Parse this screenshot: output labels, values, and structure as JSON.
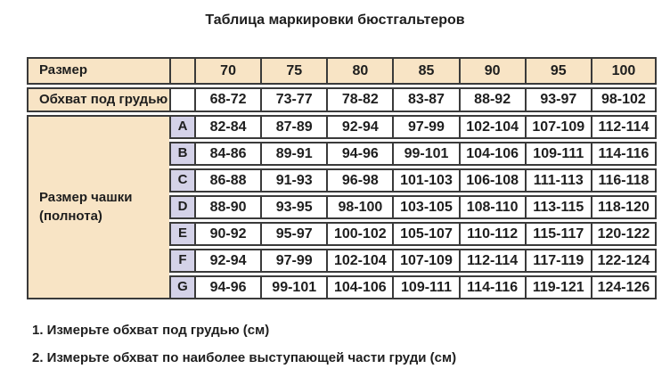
{
  "page": {
    "title": "Таблица маркировки бюстгальтеров"
  },
  "table": {
    "size_row": {
      "label": "Размер",
      "values": [
        "70",
        "75",
        "80",
        "85",
        "90",
        "95",
        "100"
      ]
    },
    "underbust_row": {
      "label": "Обхват под грудью",
      "values": [
        "68-72",
        "73-77",
        "78-82",
        "83-87",
        "88-92",
        "93-97",
        "98-102"
      ]
    },
    "cup_label": "Размер чашки (полнота)",
    "cup_rows": [
      {
        "letter": "A",
        "values": [
          "82-84",
          "87-89",
          "92-94",
          "97-99",
          "102-104",
          "107-109",
          "112-114"
        ]
      },
      {
        "letter": "B",
        "values": [
          "84-86",
          "89-91",
          "94-96",
          "99-101",
          "104-106",
          "109-111",
          "114-116"
        ]
      },
      {
        "letter": "C",
        "values": [
          "86-88",
          "91-93",
          "96-98",
          "101-103",
          "106-108",
          "111-113",
          "116-118"
        ]
      },
      {
        "letter": "D",
        "values": [
          "88-90",
          "93-95",
          "98-100",
          "103-105",
          "108-110",
          "113-115",
          "118-120"
        ]
      },
      {
        "letter": "E",
        "values": [
          "90-92",
          "95-97",
          "100-102",
          "105-107",
          "110-112",
          "115-117",
          "120-122"
        ]
      },
      {
        "letter": "F",
        "values": [
          "92-94",
          "97-99",
          "102-104",
          "107-109",
          "112-114",
          "117-119",
          "122-124"
        ]
      },
      {
        "letter": "G",
        "values": [
          "94-96",
          "99-101",
          "104-106",
          "109-111",
          "114-116",
          "119-121",
          "124-126"
        ]
      }
    ]
  },
  "footnotes": [
    "1. Измерьте обхват под грудью (см)",
    "2. Измерьте обхват по наиболее выступающей части груди (см)"
  ],
  "colors": {
    "header_bg": "#f8e4c5",
    "cup_letter_bg": "#d4d2e8",
    "border": "#3a3a3a",
    "text": "#1e1e1e",
    "cell_bg": "#ffffff",
    "page_bg": "#ffffff"
  },
  "chart_data": {
    "type": "table",
    "title": "Таблица маркировки бюстгальтеров",
    "header": [
      "Размер",
      "",
      "70",
      "75",
      "80",
      "85",
      "90",
      "95",
      "100"
    ],
    "rows": [
      [
        "Обхват под грудью",
        "",
        "68-72",
        "73-77",
        "78-82",
        "83-87",
        "88-92",
        "93-97",
        "98-102"
      ],
      [
        "Размер чашки (полнота)",
        "A",
        "82-84",
        "87-89",
        "92-94",
        "97-99",
        "102-104",
        "107-109",
        "112-114"
      ],
      [
        "",
        "B",
        "84-86",
        "89-91",
        "94-96",
        "99-101",
        "104-106",
        "109-111",
        "114-116"
      ],
      [
        "",
        "C",
        "86-88",
        "91-93",
        "96-98",
        "101-103",
        "106-108",
        "111-113",
        "116-118"
      ],
      [
        "",
        "D",
        "88-90",
        "93-95",
        "98-100",
        "103-105",
        "108-110",
        "113-115",
        "118-120"
      ],
      [
        "",
        "E",
        "90-92",
        "95-97",
        "100-102",
        "105-107",
        "110-112",
        "115-117",
        "120-122"
      ],
      [
        "",
        "F",
        "92-94",
        "97-99",
        "102-104",
        "107-109",
        "112-114",
        "117-119",
        "122-124"
      ],
      [
        "",
        "G",
        "94-96",
        "99-101",
        "104-106",
        "109-111",
        "114-116",
        "119-121",
        "124-126"
      ]
    ],
    "notes": [
      "1. Измерьте обхват под грудью (см)",
      "2. Измерьте обхват по наиболее выступающей части груди (см)"
    ]
  }
}
